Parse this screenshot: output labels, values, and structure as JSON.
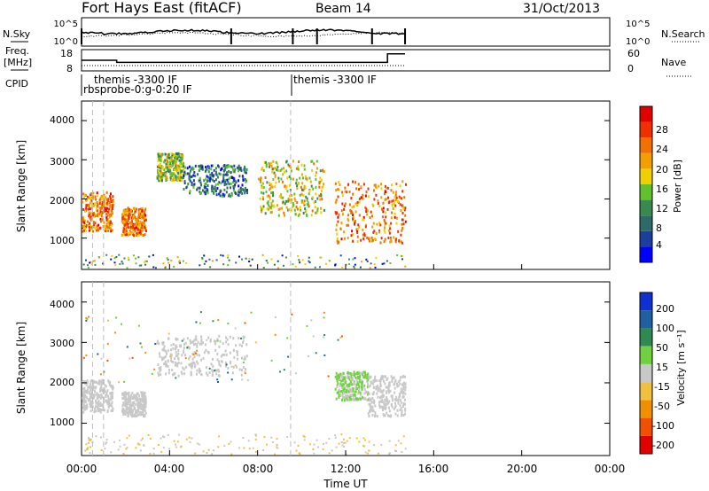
{
  "header": {
    "station": "Fort Hays East (fitACF)",
    "beam": "Beam 14",
    "date": "31/Oct/2013"
  },
  "top_panel": {
    "left_label": "N.Sky",
    "left_ticks": [
      "10^5",
      "10^0"
    ],
    "right_ticks": [
      "10^5",
      "10^0"
    ],
    "right_label": "N.Search"
  },
  "freq_panel": {
    "left_label_1": "Freq.",
    "left_label_2": "[MHz]",
    "left_ticks": [
      "18",
      "8"
    ],
    "right_ticks": [
      "60",
      "0"
    ],
    "right_label": "Nave"
  },
  "cpid": {
    "label": "CPID",
    "labels": [
      "themis -3300 IF",
      "rbsprobe-0:g-0:20 IF",
      "themis -3300 IF"
    ]
  },
  "power_panel": {
    "ylabel": "Slant Range [km]",
    "yticks": [
      "4000",
      "3000",
      "2000",
      "1000"
    ],
    "colorbar_label": "Power [dB]",
    "colorbar_ticks": [
      "28",
      "24",
      "20",
      "16",
      "12",
      "8",
      "4"
    ]
  },
  "velocity_panel": {
    "ylabel": "Slant Range [km]",
    "yticks": [
      "4000",
      "3000",
      "2000",
      "1000"
    ],
    "colorbar_label": "Velocity [m s⁻¹]",
    "colorbar_ticks": [
      "200",
      "100",
      "50",
      "15",
      "-15",
      "-50",
      "-100",
      "-200"
    ]
  },
  "xaxis": {
    "label": "Time UT",
    "ticks": [
      "00:00",
      "04:00",
      "08:00",
      "12:00",
      "16:00",
      "20:00",
      "00:00"
    ]
  },
  "colors": {
    "power_scale": [
      "#0000ff",
      "#1c3f9e",
      "#2e6a6a",
      "#3a8a50",
      "#60c030",
      "#f0d000",
      "#f0a000",
      "#f07000",
      "#f03000",
      "#e00000"
    ],
    "velocity_scale": [
      "#e00000",
      "#f05000",
      "#f09000",
      "#f0c040",
      "#c8c8c8",
      "#70d040",
      "#2e8a50",
      "#2060a0",
      "#1030d0"
    ]
  },
  "chart_data": {
    "type": "heatmap",
    "title": "Fort Hays East (fitACF)",
    "xlabel": "Time UT",
    "ylabel": "Slant Range [km]",
    "xlim": [
      0,
      24
    ],
    "ylim": [
      200,
      4500
    ],
    "x_unit": "hours UT",
    "power_range_dB": [
      0,
      30
    ],
    "velocity_range_ms": [
      -250,
      250
    ],
    "power_features": [
      {
        "t_start": 0.0,
        "t_end": 1.4,
        "range_low": 1200,
        "range_high": 2200,
        "power": 22
      },
      {
        "t_start": 1.8,
        "t_end": 2.9,
        "range_low": 1100,
        "range_high": 1800,
        "power": 22
      },
      {
        "t_start": 3.4,
        "t_end": 4.6,
        "range_low": 2500,
        "range_high": 3200,
        "power": 14
      },
      {
        "t_start": 4.6,
        "t_end": 7.5,
        "range_low": 2100,
        "range_high": 2900,
        "power": 8
      },
      {
        "t_start": 8.0,
        "t_end": 11.0,
        "range_low": 1600,
        "range_high": 3000,
        "power": 16
      },
      {
        "t_start": 11.5,
        "t_end": 14.7,
        "range_low": 900,
        "range_high": 2500,
        "power": 22
      }
    ],
    "velocity_features": [
      {
        "t_start": 0.0,
        "t_end": 1.4,
        "range_low": 1300,
        "range_high": 2100,
        "velocity": 0
      },
      {
        "t_start": 1.8,
        "t_end": 2.9,
        "range_low": 1200,
        "range_high": 1800,
        "velocity": 0
      },
      {
        "t_start": 3.4,
        "t_end": 7.5,
        "range_low": 2200,
        "range_high": 3200,
        "velocity": 0
      },
      {
        "t_start": 11.5,
        "t_end": 13.0,
        "range_low": 1600,
        "range_high": 2300,
        "velocity": 30
      },
      {
        "t_start": 13.0,
        "t_end": 14.7,
        "range_low": 1200,
        "range_high": 2200,
        "velocity": 0
      }
    ],
    "frequency_MHz": [
      {
        "t_start": 0.0,
        "t_end": 1.6,
        "value": 13
      },
      {
        "t_start": 1.6,
        "t_end": 13.9,
        "value": 12
      },
      {
        "t_start": 13.9,
        "t_end": 14.7,
        "value": 16
      }
    ]
  }
}
